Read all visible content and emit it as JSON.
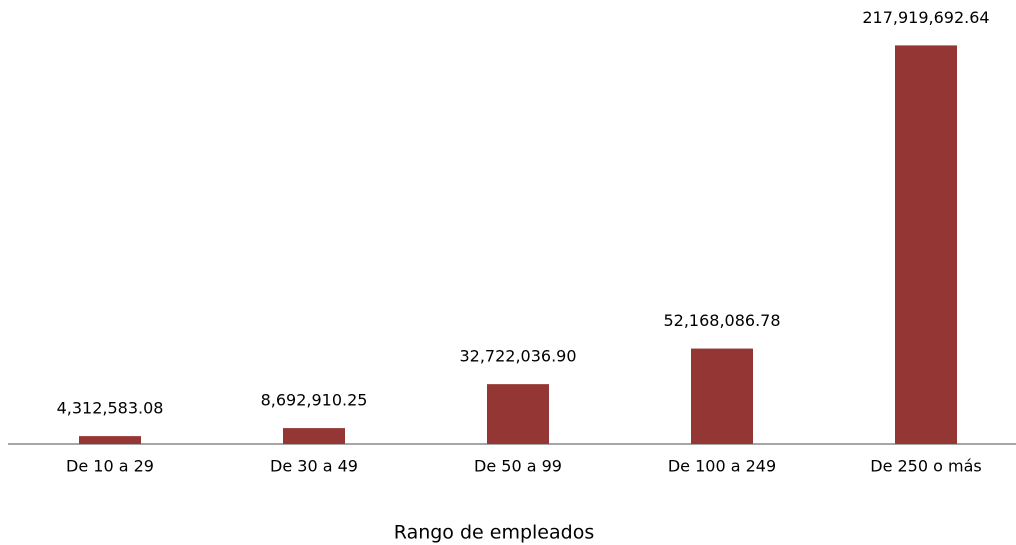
{
  "chart_data": {
    "type": "bar",
    "x_label": "Rango de empleados",
    "categories": [
      "De 10 a 29",
      "De 30 a 49",
      "De 50 a 99",
      "De 100 a 249",
      "De 250 o más"
    ],
    "values": [
      4312583.08,
      8692910.25,
      32722036.9,
      52168086.78,
      217919692.64
    ],
    "value_labels": [
      "4,312,583.08",
      "8,692,910.25",
      "32,722,036.90",
      "52,168,086.78",
      "217,919,692.64"
    ],
    "color": "#943634",
    "ylim": [
      0,
      240000000
    ]
  }
}
